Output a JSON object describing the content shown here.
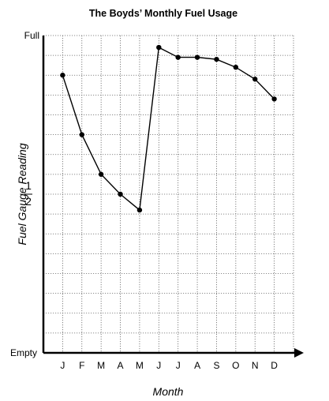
{
  "chart_data": {
    "type": "line",
    "title": "The Boyds’ Monthly Fuel Usage",
    "xlabel": "Month",
    "ylabel": "Fuel Gauge Reading",
    "categories": [
      "J",
      "F",
      "M",
      "A",
      "M",
      "J",
      "J",
      "A",
      "S",
      "O",
      "N",
      "D"
    ],
    "values": [
      0.7,
      0.55,
      0.45,
      0.4,
      0.36,
      0.77,
      0.745,
      0.745,
      0.74,
      0.72,
      0.69,
      0.64
    ],
    "ylim": [
      0,
      0.8
    ],
    "y_ticks": {
      "empty": "Empty",
      "full": "Full",
      "half_numerator": "1",
      "half_denominator": "2"
    },
    "grid": true,
    "marker": "circle",
    "line_color": "#000000"
  }
}
